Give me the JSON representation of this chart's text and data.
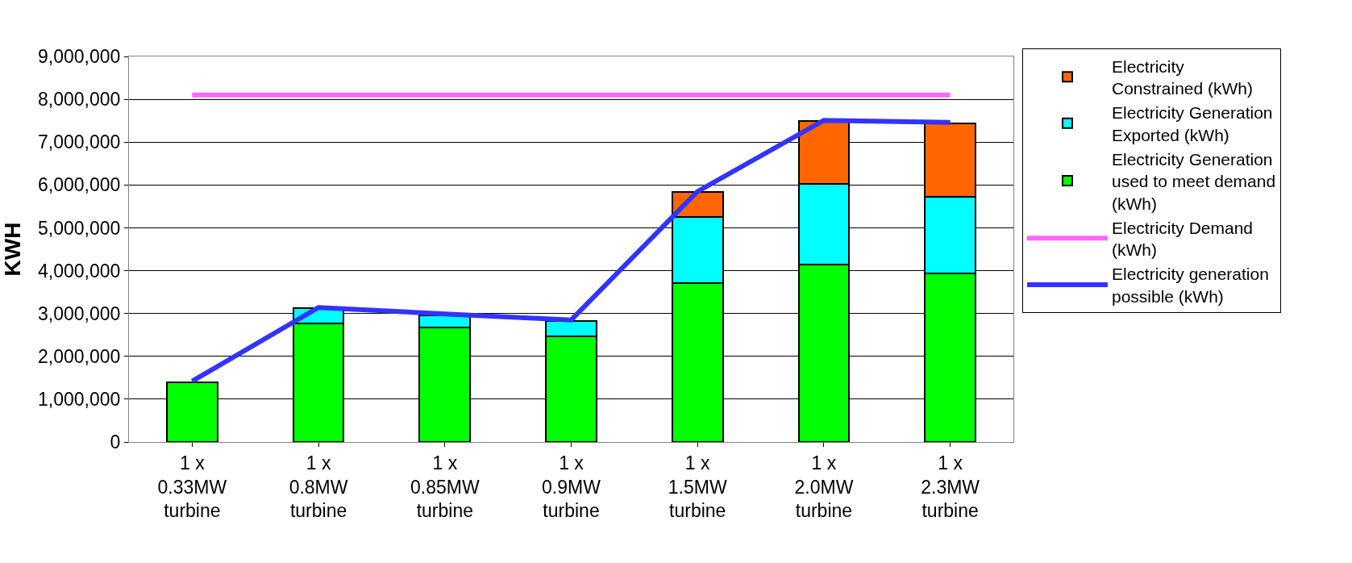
{
  "chart_data": {
    "type": "bar",
    "stacked": true,
    "ylabel": "KWH",
    "categories": [
      "1 x 0.33MW turbine",
      "1 x 0.8MW turbine",
      "1 x 0.85MW turbine",
      "1 x 0.9MW turbine",
      "1 x 1.5MW turbine",
      "1 x 2.0MW turbine",
      "1 x 2.3MW turbine"
    ],
    "series": [
      {
        "name": "Electricity Generation used to meet demand (kWh)",
        "color": "#00ff00",
        "values": [
          1400000,
          2760000,
          2670000,
          2470000,
          3700000,
          4150000,
          3940000
        ]
      },
      {
        "name": "Electricity Generation Exported (kWh)",
        "color": "#00ffff",
        "values": [
          null,
          370000,
          290000,
          360000,
          1560000,
          1870000,
          1780000
        ]
      },
      {
        "name": "Electricity Constrained (kWh)",
        "color": "#ff6600",
        "values": [
          null,
          null,
          null,
          null,
          570000,
          1470000,
          1720000
        ]
      },
      {
        "name": "Electricity Demand (kWh)",
        "type": "line",
        "color": "#ff66ff",
        "values": [
          8100000,
          8100000,
          8100000,
          8100000,
          8100000,
          8100000,
          8100000
        ]
      },
      {
        "name": "Electricity generation possible (kWh)",
        "type": "line",
        "color": "#3333ff",
        "values": [
          1420000,
          3140000,
          2990000,
          2850000,
          5850000,
          7510000,
          7460000
        ]
      }
    ],
    "ylim": [
      0,
      9000000
    ],
    "yticks": [
      {
        "value": 0,
        "label": "0"
      },
      {
        "value": 1000000,
        "label": "1,000,000"
      },
      {
        "value": 2000000,
        "label": "2,000,000"
      },
      {
        "value": 3000000,
        "label": "3,000,000"
      },
      {
        "value": 4000000,
        "label": "4,000,000"
      },
      {
        "value": 5000000,
        "label": "5,000,000"
      },
      {
        "value": 6000000,
        "label": "6,000,000"
      },
      {
        "value": 7000000,
        "label": "7,000,000"
      },
      {
        "value": 8000000,
        "label": "8,000,000"
      },
      {
        "value": 9000000,
        "label": "9,000,000"
      }
    ],
    "grid": "y",
    "legend": "right"
  }
}
